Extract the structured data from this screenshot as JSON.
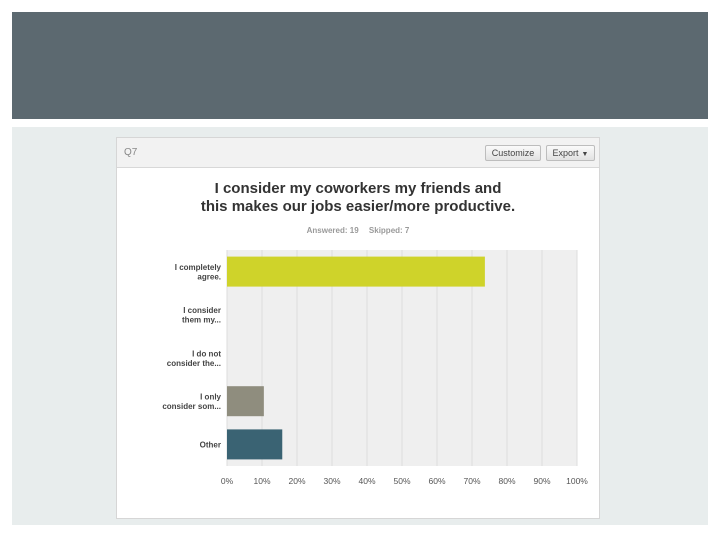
{
  "panel": {
    "question_label": "Q7",
    "customize_label": "Customize",
    "export_label": "Export",
    "export_caret": "▼",
    "answered_text": "Answered: 19",
    "skipped_text": "Skipped: 7"
  },
  "colors": {
    "header_band": "#5c6970",
    "content_bg": "#e8eded",
    "plot_bg": "#efefef"
  },
  "chart_data": {
    "type": "bar",
    "orientation": "horizontal",
    "title_line1": "I consider my coworkers my friends and",
    "title_line2": "this makes our jobs easier/more productive.",
    "categories": [
      [
        "I completely",
        "agree."
      ],
      [
        "I consider",
        "them my..."
      ],
      [
        "I do not",
        "consider the..."
      ],
      [
        "I only",
        "consider som..."
      ],
      [
        "Other"
      ]
    ],
    "values": [
      73.68,
      0,
      0,
      10.53,
      15.79
    ],
    "bar_colors": [
      "#cfd32a",
      "#cfd32a",
      "#cfd32a",
      "#8f8d7e",
      "#3a6373"
    ],
    "xlim": [
      0,
      100
    ],
    "x_ticks": [
      "0%",
      "10%",
      "20%",
      "30%",
      "40%",
      "50%",
      "60%",
      "70%",
      "80%",
      "90%",
      "100%"
    ],
    "grid": true
  }
}
